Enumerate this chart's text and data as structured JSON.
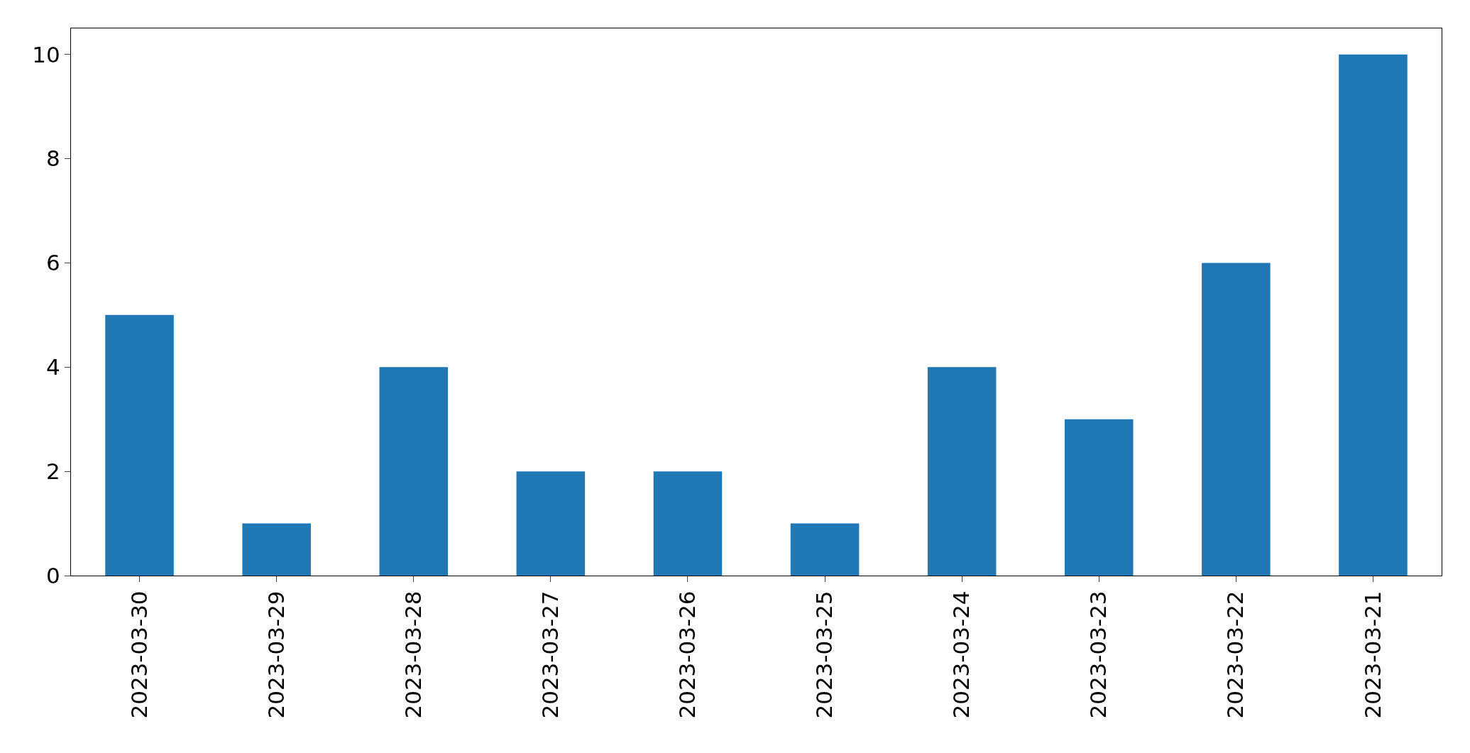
{
  "chart_data": {
    "type": "bar",
    "categories": [
      "2023-03-30",
      "2023-03-29",
      "2023-03-28",
      "2023-03-27",
      "2023-03-26",
      "2023-03-25",
      "2023-03-24",
      "2023-03-23",
      "2023-03-22",
      "2023-03-21"
    ],
    "values": [
      5,
      1,
      4,
      2,
      2,
      1,
      4,
      3,
      6,
      10
    ],
    "color": "#1f77b4",
    "ylim": [
      0,
      10.5
    ],
    "yticks": [
      0,
      2,
      4,
      6,
      8,
      10
    ],
    "legend": false
  }
}
